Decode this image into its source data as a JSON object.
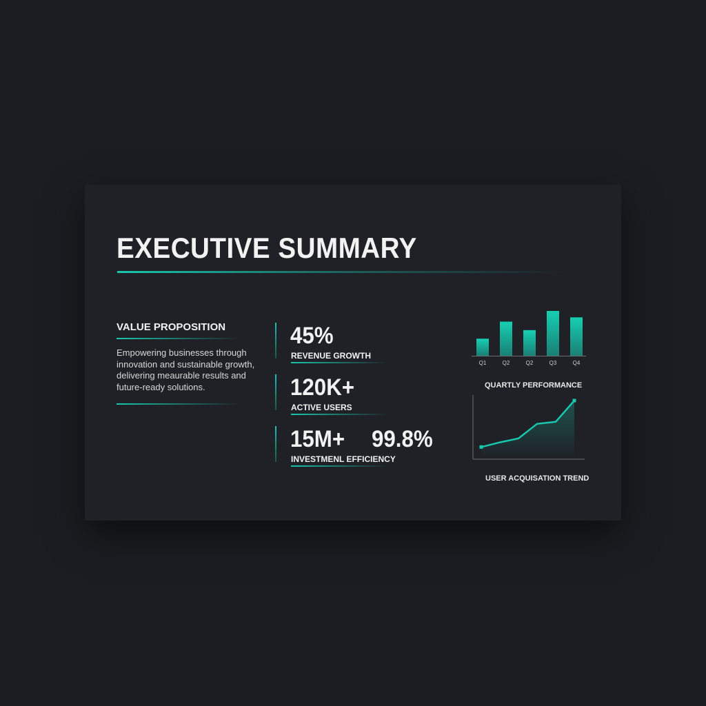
{
  "title": "EXECUTIVE SUMMARY",
  "value_proposition": {
    "heading": "VALUE PROPOSITION",
    "text": "Empowering businesses through innovation and sustainable growth, delivering meaurable results and future-ready solutions."
  },
  "stats": [
    {
      "value": "45%",
      "label": "REVENUE GROWTH"
    },
    {
      "value": "120K+",
      "label": "ACTIVE USERS"
    },
    {
      "value": "15M+",
      "value2": "99.8%",
      "label": "INVESTMENL EFFICIENCY"
    }
  ],
  "colors": {
    "accent": "#18c7ad",
    "background": "#1b1d22",
    "card": "#1f2126"
  },
  "chart_data": [
    {
      "type": "bar",
      "title": "QUARTLY PERFORMANCE",
      "categories": [
        "Q1",
        "Q2",
        "Q2",
        "Q3",
        "Q4"
      ],
      "values": [
        24,
        48,
        36,
        63,
        54
      ],
      "grid": false
    },
    {
      "type": "area",
      "title": "USER ACQUISATION TREND",
      "x": [
        1,
        2,
        3,
        4,
        5,
        6
      ],
      "y": [
        10,
        17,
        23,
        45,
        48,
        80
      ],
      "grid": false
    }
  ]
}
